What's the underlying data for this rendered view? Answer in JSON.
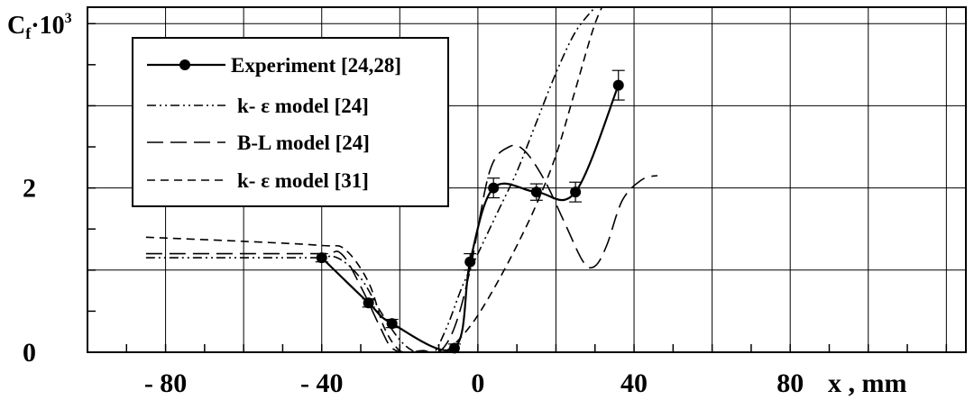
{
  "chart_data": {
    "type": "line",
    "ylabel": "C",
    "ylabel_sub": "f",
    "ylabel_times": "·10",
    "ylabel_exp": "3",
    "xlabel": "x , mm",
    "x_tick_labels": [
      "- 80",
      "- 40",
      "0",
      "40",
      "80"
    ],
    "x_tick_values": [
      -80,
      -40,
      0,
      40,
      80
    ],
    "y_tick_labels": [
      "0",
      "2"
    ],
    "y_tick_values": [
      0,
      2
    ],
    "xlim": [
      -100,
      125
    ],
    "ylim": [
      0,
      4.2
    ],
    "grid": true,
    "legend_position": "top-left",
    "series": [
      {
        "name": "Experiment [24,28]",
        "style": "solid-markers",
        "x": [
          -40,
          -28,
          -22,
          -6,
          -2,
          4,
          15,
          25,
          36
        ],
        "y": [
          1.15,
          0.6,
          0.35,
          0.05,
          1.1,
          2.0,
          1.95,
          1.95,
          3.25
        ],
        "err": [
          0.05,
          0.05,
          0.05,
          0.05,
          0.1,
          0.12,
          0.1,
          0.12,
          0.18
        ]
      },
      {
        "name": "k- ε  model [24]",
        "style": "dash-dot-dot",
        "x": [
          -85,
          -60,
          -42,
          -36,
          -30,
          -25,
          -20,
          -16,
          -12,
          -8,
          -4,
          0,
          5,
          10,
          15,
          20,
          25,
          30
        ],
        "y": [
          1.15,
          1.15,
          1.15,
          1.15,
          0.9,
          0.5,
          0.15,
          0.0,
          -0.05,
          0.3,
          0.8,
          1.2,
          1.7,
          2.2,
          2.8,
          3.4,
          3.9,
          4.2
        ]
      },
      {
        "name": "B-L  model [24]",
        "style": "long-dash",
        "x": [
          -85,
          -60,
          -40,
          -35,
          -30,
          -25,
          -22,
          -18,
          -14,
          -10,
          -6,
          -2,
          3,
          8,
          12,
          17,
          22,
          27,
          30,
          33,
          37,
          42,
          46
        ],
        "y": [
          1.2,
          1.2,
          1.2,
          1.2,
          0.8,
          0.3,
          0.05,
          0.0,
          0.02,
          0.0,
          0.3,
          1.0,
          2.2,
          2.5,
          2.45,
          2.1,
          1.6,
          1.1,
          1.05,
          1.3,
          1.85,
          2.1,
          2.15
        ]
      },
      {
        "name": "k- ε  model [31]",
        "style": "dashed",
        "x": [
          -85,
          -60,
          -40,
          -34,
          -28,
          -24,
          -20,
          -16,
          -12,
          -8,
          -4,
          0,
          5,
          10,
          15,
          20,
          25,
          30,
          34
        ],
        "y": [
          1.4,
          1.35,
          1.3,
          1.25,
          0.85,
          0.3,
          0.02,
          0.0,
          -0.05,
          0.02,
          0.2,
          0.45,
          0.85,
          1.3,
          1.8,
          2.4,
          3.2,
          4.0,
          4.4
        ]
      }
    ]
  }
}
